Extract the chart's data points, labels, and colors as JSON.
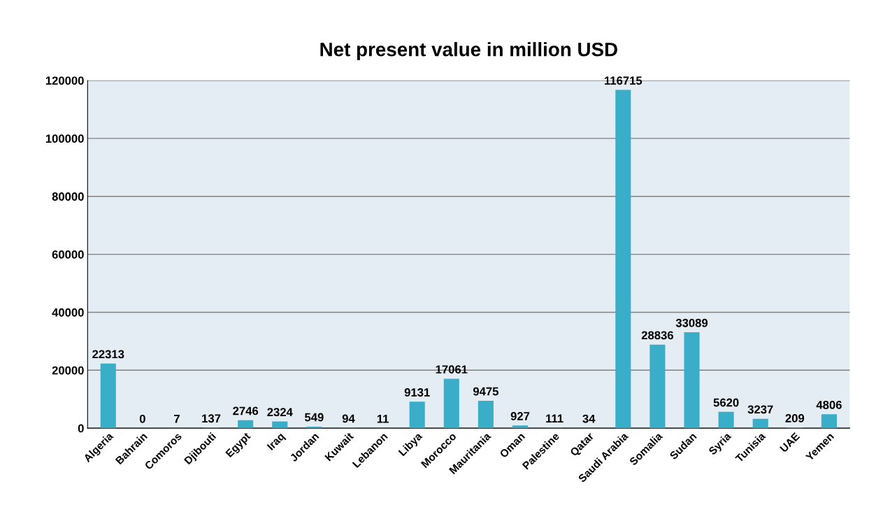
{
  "chart_data": {
    "type": "bar",
    "title": "Net present value in million USD",
    "categories": [
      "Algeria",
      "Bahrain",
      "Comoros",
      "Djibouti",
      "Egypt",
      "Iraq",
      "Jordan",
      "Kuwait",
      "Lebanon",
      "Libya",
      "Morocco",
      "Mauritania",
      "Oman",
      "Palestine",
      "Qatar",
      "Saudi Arabia",
      "Somalia",
      "Sudan",
      "Syria",
      "Tunisia",
      "UAE",
      "Yemen"
    ],
    "values": [
      22313,
      0,
      7,
      137,
      2746,
      2324,
      549,
      94,
      11,
      9131,
      17061,
      9475,
      927,
      111,
      34,
      116715,
      28836,
      33089,
      5620,
      3237,
      209,
      4806
    ],
    "color": "#3aaec8",
    "ylim": [
      0,
      120000
    ],
    "yticks": [
      0,
      20000,
      40000,
      60000,
      80000,
      100000,
      120000
    ],
    "grid": "y",
    "data_labels": true,
    "legend": false
  }
}
